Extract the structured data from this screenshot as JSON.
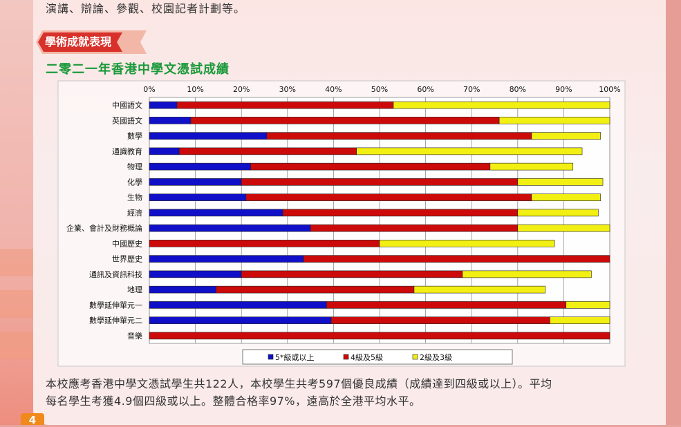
{
  "page": {
    "top_text": "演講、辯論、參觀、校園記者計劃等。",
    "section_tag": "學術成就表現",
    "subtitle": "二零二一年香港中學文憑試成績",
    "footer_line1": "本校應考香港中學文憑試學生共122人，本校學生共考597個優良成績（成績達到四級或以上）。平均",
    "footer_line2": "每名學生考獲4.9個四級或以上。整體合格率97%，遠高於全港平均水平。",
    "page_number": "4"
  },
  "colors": {
    "blue": "#1010c8",
    "red": "#cc0a0a",
    "yellow": "#f2ef12"
  },
  "chart_data": {
    "type": "bar",
    "orientation": "horizontal",
    "stacked": true,
    "xlim": [
      0,
      100
    ],
    "x_ticks": [
      "0%",
      "10%",
      "20%",
      "30%",
      "40%",
      "50%",
      "60%",
      "70%",
      "80%",
      "90%",
      "100%"
    ],
    "grid": true,
    "legend_position": "bottom",
    "categories": [
      "中國語文",
      "英國語文",
      "數學",
      "通識教育",
      "物理",
      "化學",
      "生物",
      "經濟",
      "企業、會計及財務概論",
      "中國歷史",
      "世界歷史",
      "通訊及資訊科技",
      "地理",
      "數學延伸單元一",
      "數學延伸單元二",
      "音樂"
    ],
    "series": [
      {
        "name": "5*級或以上",
        "color": "#1010c8",
        "values": [
          6,
          9,
          25.5,
          6.5,
          22,
          20,
          21,
          29,
          35,
          0,
          33.5,
          20,
          14.5,
          38.5,
          39.5,
          0
        ]
      },
      {
        "name": "4級及5級",
        "color": "#cc0a0a",
        "values": [
          47,
          67,
          57.5,
          38.5,
          52,
          60,
          62,
          51,
          45,
          50,
          66.5,
          48,
          43,
          52,
          47.5,
          100
        ]
      },
      {
        "name": "2級及3級",
        "color": "#f2ef12",
        "values": [
          47,
          24,
          15,
          49,
          18,
          18.5,
          15,
          17.5,
          20,
          38,
          0,
          28,
          28.5,
          9.5,
          13,
          0
        ]
      }
    ]
  }
}
